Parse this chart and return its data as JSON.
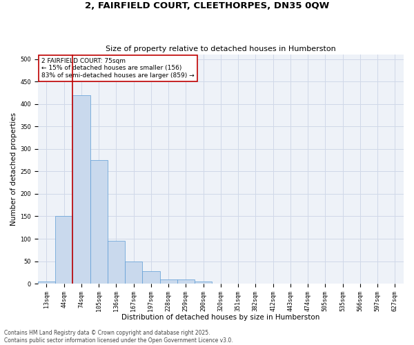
{
  "title_line1": "2, FAIRFIELD COURT, CLEETHORPES, DN35 0QW",
  "title_line2": "Size of property relative to detached houses in Humberston",
  "xlabel": "Distribution of detached houses by size in Humberston",
  "ylabel": "Number of detached properties",
  "categories": [
    "13sqm",
    "44sqm",
    "74sqm",
    "105sqm",
    "136sqm",
    "167sqm",
    "197sqm",
    "228sqm",
    "259sqm",
    "290sqm",
    "320sqm",
    "351sqm",
    "382sqm",
    "412sqm",
    "443sqm",
    "474sqm",
    "505sqm",
    "535sqm",
    "566sqm",
    "597sqm",
    "627sqm"
  ],
  "values": [
    5,
    150,
    420,
    275,
    95,
    50,
    28,
    10,
    10,
    5,
    0,
    0,
    0,
    0,
    0,
    0,
    0,
    0,
    0,
    0,
    0
  ],
  "bar_color": "#c9d9ed",
  "bar_edge_color": "#5b9bd5",
  "grid_color": "#d0d8e8",
  "background_color": "#eef2f8",
  "annotation_box_color": "#c00000",
  "vline_color": "#c00000",
  "vline_x_index": 2,
  "annotation_text": "2 FAIRFIELD COURT: 75sqm\n← 15% of detached houses are smaller (156)\n83% of semi-detached houses are larger (859) →",
  "annotation_fontsize": 6.5,
  "ylim": [
    0,
    510
  ],
  "yticks": [
    0,
    50,
    100,
    150,
    200,
    250,
    300,
    350,
    400,
    450,
    500
  ],
  "footer_line1": "Contains HM Land Registry data © Crown copyright and database right 2025.",
  "footer_line2": "Contains public sector information licensed under the Open Government Licence v3.0.",
  "title_fontsize": 9.5,
  "subtitle_fontsize": 8.0,
  "xlabel_fontsize": 7.5,
  "ylabel_fontsize": 7.5,
  "tick_fontsize": 6.0,
  "footer_fontsize": 5.5
}
